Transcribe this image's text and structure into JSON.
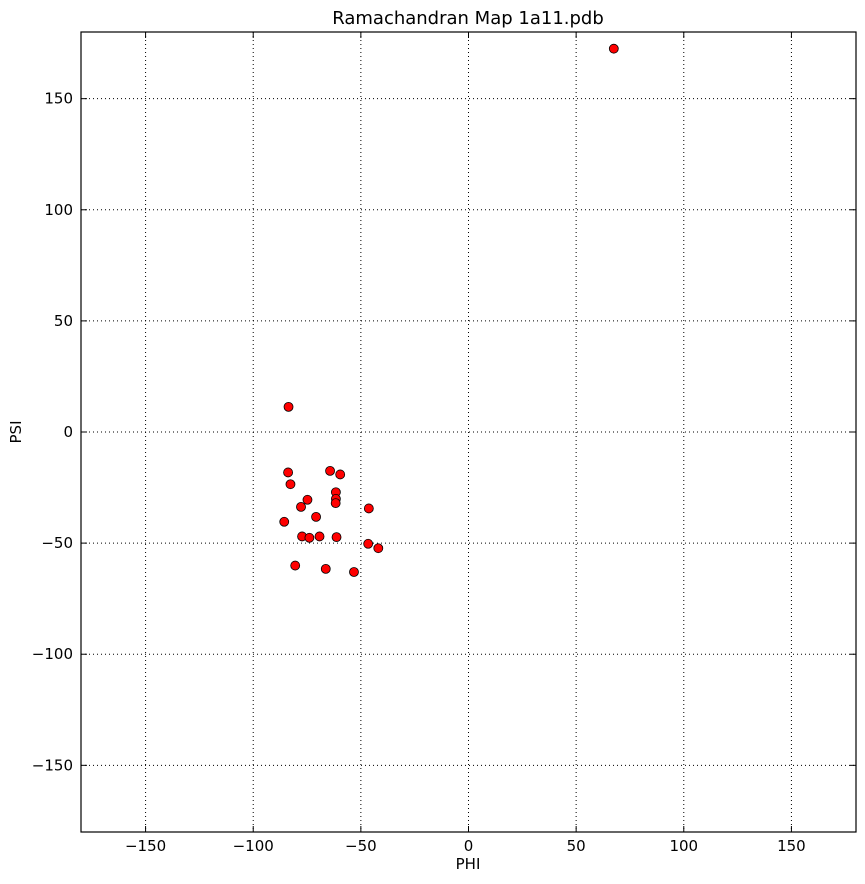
{
  "chart_data": {
    "type": "scatter",
    "title": "Ramachandran Map 1a11.pdb",
    "xlabel": "PHI",
    "ylabel": "PSI",
    "xlim": [
      -180,
      180
    ],
    "ylim": [
      -180,
      180
    ],
    "xticks": [
      -150,
      -100,
      -50,
      0,
      50,
      100,
      150
    ],
    "yticks": [
      -150,
      -100,
      -50,
      0,
      50,
      100,
      150
    ],
    "xtick_labels": [
      "−150",
      "−100",
      "−50",
      "0",
      "50",
      "100",
      "150"
    ],
    "ytick_labels": [
      "−150",
      "−100",
      "−50",
      "0",
      "50",
      "100",
      "150"
    ],
    "grid": true,
    "marker_color": "#ff0000",
    "points": [
      {
        "x": 67.5,
        "y": 172.5
      },
      {
        "x": -83.6,
        "y": 11.3
      },
      {
        "x": -83.8,
        "y": -18.2
      },
      {
        "x": -82.7,
        "y": -23.5
      },
      {
        "x": -64.3,
        "y": -17.5
      },
      {
        "x": -59.6,
        "y": -19.1
      },
      {
        "x": -61.6,
        "y": -27.1
      },
      {
        "x": -61.6,
        "y": -30.1
      },
      {
        "x": -61.7,
        "y": -32.0
      },
      {
        "x": -74.8,
        "y": -30.5
      },
      {
        "x": -77.8,
        "y": -33.7
      },
      {
        "x": -46.3,
        "y": -34.4
      },
      {
        "x": -70.8,
        "y": -38.2
      },
      {
        "x": -85.6,
        "y": -40.4
      },
      {
        "x": -77.3,
        "y": -47.0
      },
      {
        "x": -73.9,
        "y": -47.6
      },
      {
        "x": -69.2,
        "y": -47.0
      },
      {
        "x": -61.3,
        "y": -47.3
      },
      {
        "x": -46.6,
        "y": -50.3
      },
      {
        "x": -41.9,
        "y": -52.3
      },
      {
        "x": -80.5,
        "y": -60.1
      },
      {
        "x": -66.3,
        "y": -61.6
      },
      {
        "x": -53.2,
        "y": -63.0
      }
    ]
  }
}
